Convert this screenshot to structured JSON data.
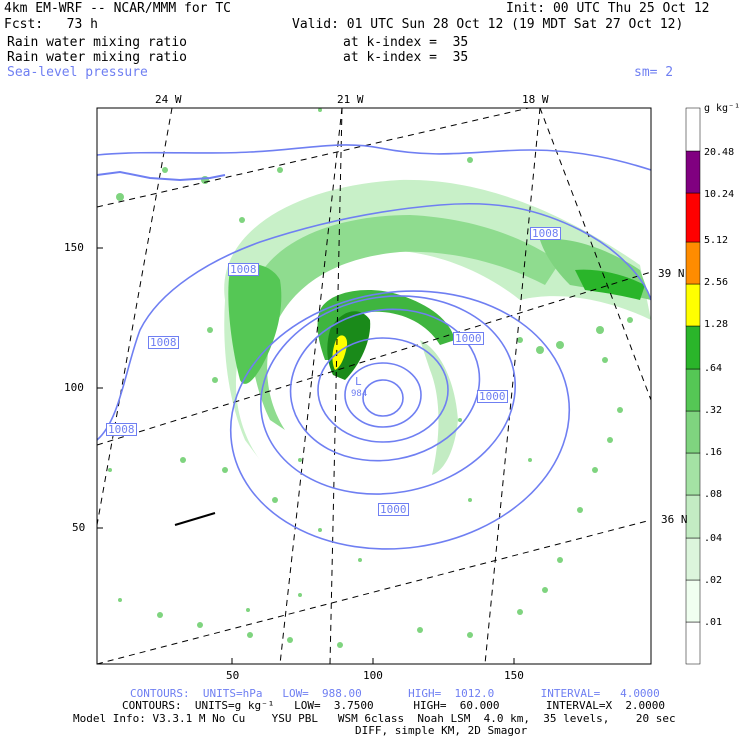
{
  "header": {
    "model": "4km EM-WRF -- NCAR/MMM for TC",
    "init": "Init: 00 UTC Thu 25 Oct 12",
    "fcst": "Fcst:   73 h",
    "valid": "Valid: 01 UTC Sun 28 Oct 12 (19 MDT Sat 27 Oct 12)",
    "field1": "Rain water mixing ratio",
    "field1_level": "at k-index =  35",
    "field2": "Rain water mixing ratio",
    "field2_level": "at k-index =  35",
    "field3": "Sea-level pressure",
    "smoothing": "sm= 2"
  },
  "axes": {
    "top_lon_labels": [
      "24 W",
      "21 W",
      "18 W"
    ],
    "right_lat_labels": [
      "39 N",
      "36 N"
    ],
    "left_ticks": [
      "150",
      "100",
      "50"
    ],
    "bottom_ticks": [
      "50",
      "100",
      "150"
    ]
  },
  "map": {
    "contour_labels": [
      "1008",
      "1008",
      "1008",
      "1008",
      "1000",
      "1000",
      "1000",
      "1000"
    ],
    "low_marker": "L",
    "low_value": "984",
    "colors": {
      "contour": "#6f7ff2",
      "rain_light": "#c8f0c8",
      "rain_mid": "#7ad67a",
      "rain_dark": "#2fb02f",
      "rain_max": "#ffff00"
    }
  },
  "colorbar": {
    "unit": "g kg⁻¹",
    "labels": [
      "20.48",
      "10.24",
      "5.12",
      "2.56",
      "1.28",
      ".64",
      ".32",
      ".16",
      ".08",
      ".04",
      ".02",
      ".01"
    ],
    "colors": [
      "#ffffff",
      "#f0fff0",
      "#dcf5dc",
      "#c3ecc3",
      "#a4e2a4",
      "#7fd47f",
      "#55c755",
      "#2ab52a",
      "#1a8a1a",
      "#ffff00",
      "#ff8c00",
      "#ff0000",
      "#800080"
    ]
  },
  "footer": {
    "contours1": "CONTOURS:  UNITS=hPa   LOW=  988.00       HIGH=  1012.0       INTERVAL=   4.0000",
    "contours2": "CONTOURS:  UNITS=g kg⁻¹   LOW=  3.7500      HIGH=  60.000       INTERVAL=X  2.0000",
    "model_info": "Model Info: V3.3.1 M No Cu    YSU PBL   WSM 6class  Noah LSM  4.0 km,  35 levels,    20 sec",
    "diff": "DIFF, simple KM, 2D Smagor"
  }
}
